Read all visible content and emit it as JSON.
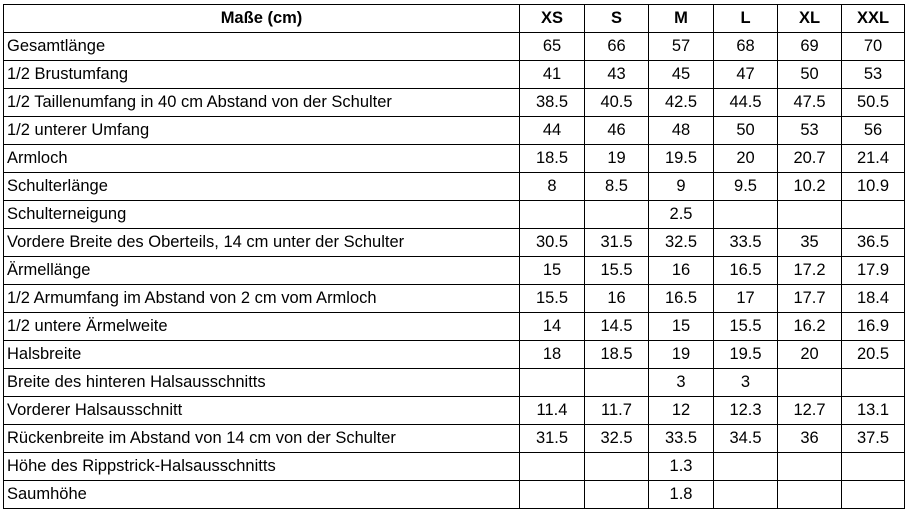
{
  "table": {
    "header": [
      "Maße (cm)",
      "XS",
      "S",
      "M",
      "L",
      "XL",
      "XXL"
    ],
    "rows": [
      {
        "label": "Gesamtlänge",
        "values": [
          "65",
          "66",
          "57",
          "68",
          "69",
          "70"
        ]
      },
      {
        "label": "1/2 Brustumfang",
        "values": [
          "41",
          "43",
          "45",
          "47",
          "50",
          "53"
        ]
      },
      {
        "label": "1/2 Taillenumfang in 40 cm Abstand von der Schulter",
        "values": [
          "38.5",
          "40.5",
          "42.5",
          "44.5",
          "47.5",
          "50.5"
        ]
      },
      {
        "label": "1/2 unterer Umfang",
        "values": [
          "44",
          "46",
          "48",
          "50",
          "53",
          "56"
        ]
      },
      {
        "label": "Armloch",
        "values": [
          "18.5",
          "19",
          "19.5",
          "20",
          "20.7",
          "21.4"
        ]
      },
      {
        "label": "Schulterlänge",
        "values": [
          "8",
          "8.5",
          "9",
          "9.5",
          "10.2",
          "10.9"
        ]
      },
      {
        "label": "Schulterneigung",
        "values": [
          "",
          "",
          "2.5",
          "",
          "",
          ""
        ]
      },
      {
        "label": "Vordere Breite des Oberteils, 14 cm unter der Schulter",
        "values": [
          "30.5",
          "31.5",
          "32.5",
          "33.5",
          "35",
          "36.5"
        ]
      },
      {
        "label": "Ärmellänge",
        "values": [
          "15",
          "15.5",
          "16",
          "16.5",
          "17.2",
          "17.9"
        ]
      },
      {
        "label": "1/2 Armumfang im Abstand von 2 cm vom Armloch",
        "values": [
          "15.5",
          "16",
          "16.5",
          "17",
          "17.7",
          "18.4"
        ]
      },
      {
        "label": "1/2 untere Ärmelweite",
        "values": [
          "14",
          "14.5",
          "15",
          "15.5",
          "16.2",
          "16.9"
        ]
      },
      {
        "label": "Halsbreite",
        "values": [
          "18",
          "18.5",
          "19",
          "19.5",
          "20",
          "20.5"
        ]
      },
      {
        "label": "Breite des hinteren Halsausschnitts",
        "values": [
          "",
          "",
          "3",
          "3",
          "",
          ""
        ]
      },
      {
        "label": "Vorderer Halsausschnitt",
        "values": [
          "11.4",
          "11.7",
          "12",
          "12.3",
          "12.7",
          "13.1"
        ]
      },
      {
        "label": "Rückenbreite im Abstand von 14 cm von der Schulter",
        "values": [
          "31.5",
          "32.5",
          "33.5",
          "34.5",
          "36",
          "37.5"
        ]
      },
      {
        "label": "Höhe des Rippstrick-Halsausschnitts",
        "values": [
          "",
          "",
          "1.3",
          "",
          "",
          ""
        ]
      },
      {
        "label": "Saumhöhe",
        "values": [
          "",
          "",
          "1.8",
          "",
          "",
          ""
        ]
      }
    ]
  }
}
